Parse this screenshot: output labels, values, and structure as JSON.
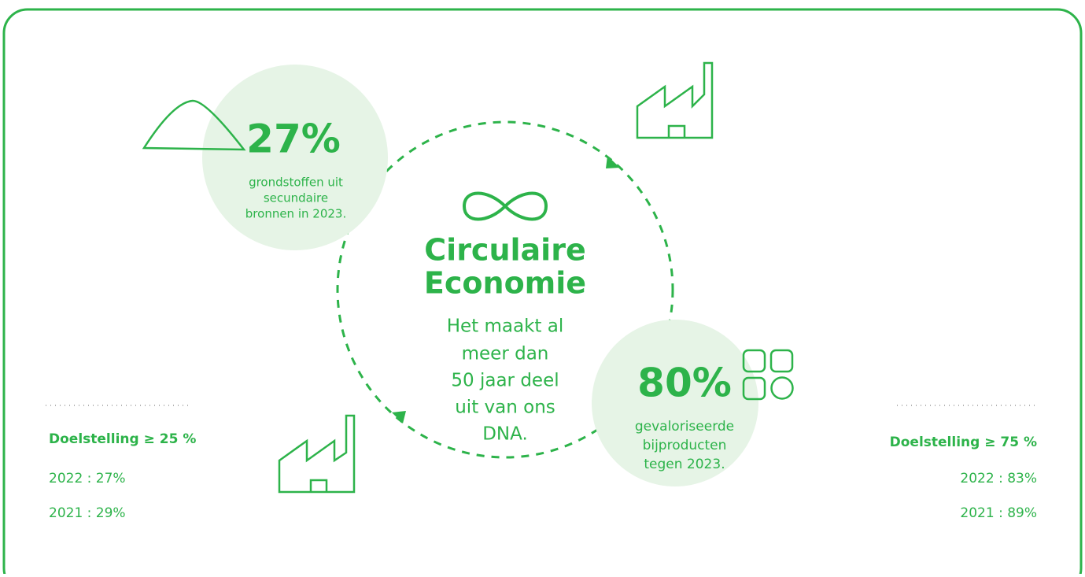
{
  "left_stat": {
    "value": "27%",
    "caption": [
      "grondstoffen uit",
      "secundaire",
      "bronnen in 2023."
    ]
  },
  "center": {
    "title": [
      "Circulaire",
      "Economie"
    ],
    "text": [
      "Het maakt al",
      "meer dan",
      "50 jaar deel",
      "uit van ons",
      "DNA."
    ]
  },
  "right_stat": {
    "value": "80%",
    "caption": [
      "gevaloriseerde",
      "bijproducten",
      "tegen 2023."
    ]
  },
  "left_target": {
    "label": "Doelstelling ≥ 25 %",
    "history": [
      "2022 : 27%",
      "2021 : 29%"
    ]
  },
  "right_target": {
    "label": "Doelstelling ≥ 75 %",
    "history": [
      "2022 : 83%",
      "2021 : 89%"
    ]
  }
}
